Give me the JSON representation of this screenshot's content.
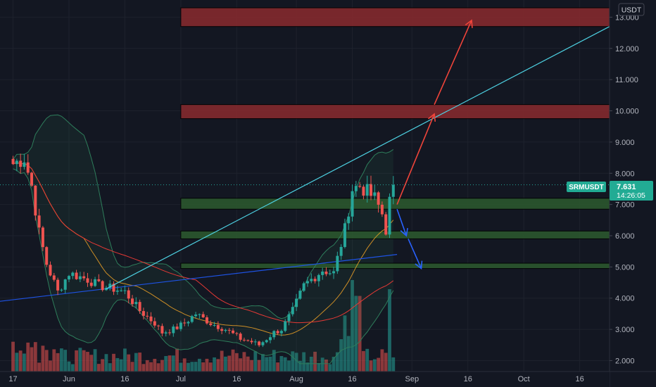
{
  "chart_data": {
    "type": "candlestick",
    "symbol": "SRMUSDT",
    "currency": "USDT",
    "last_price": "7.631",
    "countdown": "14:26:05",
    "y_ticks": [
      "13.000",
      "12.000",
      "11.000",
      "10.000",
      "9.000",
      "8.000",
      "7.000",
      "6.000",
      "5.000",
      "4.000",
      "3.000",
      "2.000"
    ],
    "y_tick_values": [
      13,
      12,
      11,
      10,
      9,
      8,
      7,
      6,
      5,
      4,
      3,
      2
    ],
    "ylim": [
      1.65,
      13.55
    ],
    "x_ticks": [
      {
        "label": "17",
        "day": 0
      },
      {
        "label": "Jun",
        "day": 15
      },
      {
        "label": "16",
        "day": 30
      },
      {
        "label": "Jul",
        "day": 45
      },
      {
        "label": "16",
        "day": 60
      },
      {
        "label": "Aug",
        "day": 76
      },
      {
        "label": "16",
        "day": 91
      },
      {
        "label": "Sep",
        "day": 107
      },
      {
        "label": "16",
        "day": 122
      },
      {
        "label": "Oct",
        "day": 137
      },
      {
        "label": "16",
        "day": 152
      }
    ],
    "xlim_days": [
      -3.5,
      160
    ],
    "price_anchors": [
      [
        0,
        8.3
      ],
      [
        3,
        8.5
      ],
      [
        5,
        7.6
      ],
      [
        7,
        6.1
      ],
      [
        9,
        5.1
      ],
      [
        12,
        4.2
      ],
      [
        15,
        4.8
      ],
      [
        20,
        4.6
      ],
      [
        23,
        4.4
      ],
      [
        27,
        4.3
      ],
      [
        30,
        4.2
      ],
      [
        34,
        3.6
      ],
      [
        38,
        3.2
      ],
      [
        40,
        2.9
      ],
      [
        43,
        3.0
      ],
      [
        46,
        3.2
      ],
      [
        49,
        3.5
      ],
      [
        53,
        3.2
      ],
      [
        57,
        3.0
      ],
      [
        61,
        2.7
      ],
      [
        64,
        2.6
      ],
      [
        66,
        2.5
      ],
      [
        70,
        2.9
      ],
      [
        72,
        3.0
      ],
      [
        75,
        3.6
      ],
      [
        78,
        4.4
      ],
      [
        83,
        4.9
      ],
      [
        86,
        4.8
      ],
      [
        89,
        6.2
      ],
      [
        91,
        7.5
      ],
      [
        93,
        7.6
      ],
      [
        95,
        7.4
      ],
      [
        97,
        7.2
      ],
      [
        99,
        6.7
      ],
      [
        100,
        6.2
      ],
      [
        101,
        7.1
      ],
      [
        102,
        7.63
      ]
    ],
    "volume_note": "volume histogram along bottom, peaks near day 91 and day 101",
    "zones_resistance": [
      [
        12.7,
        13.3
      ],
      [
        9.75,
        10.2
      ]
    ],
    "zones_support": [
      [
        6.85,
        7.2
      ],
      [
        5.9,
        6.15
      ],
      [
        4.95,
        5.12
      ]
    ],
    "zone_start_day": 45,
    "trendline": [
      [
        25,
        4.3
      ],
      [
        160,
        12.7
      ]
    ],
    "arrows_up": [
      [
        [
          103,
          7.0
        ],
        [
          113,
          9.9
        ]
      ],
      [
        [
          113,
          10.2
        ],
        [
          123,
          12.9
        ]
      ]
    ],
    "arrows_down": [
      [
        [
          103,
          6.85
        ],
        [
          105.5,
          6.0
        ]
      ],
      [
        [
          106,
          5.9
        ],
        [
          109.5,
          4.95
        ]
      ]
    ],
    "colors": {
      "background": "#131722",
      "bull": "#26a69a",
      "bear": "#ef5350",
      "resistance_zone": "#8a2a2e",
      "support_zone": "#2c5a2e",
      "trendline": "#4dd0e1",
      "arrow_up": "#f0443a",
      "arrow_down": "#2962ff",
      "bb_band": "#2e7d5b",
      "sma_red": "#e53935",
      "sma_orange": "#f9a825",
      "sma_blue": "#1e53e5",
      "label_bg": "#22ab94"
    }
  }
}
